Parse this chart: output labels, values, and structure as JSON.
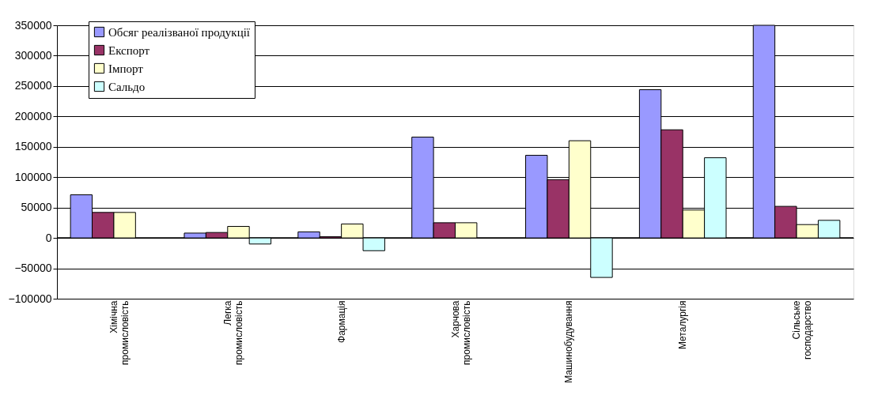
{
  "chart_data": {
    "type": "bar",
    "categories": [
      "Хімічна промисловість",
      "Легка промисловість",
      "Фармація",
      "Харчова промисловість",
      "Машинобудування",
      "Металургія",
      "Сільське господарство"
    ],
    "series": [
      {
        "name": "Обсяг реалізваної продукції",
        "color": "#9999ff",
        "values": [
          71000,
          8000,
          10000,
          166000,
          136000,
          244000,
          350000
        ]
      },
      {
        "name": "Експорт",
        "color": "#993366",
        "values": [
          42000,
          9000,
          2000,
          25000,
          96000,
          178000,
          52000
        ]
      },
      {
        "name": "Імпорт",
        "color": "#ffffcc",
        "values": [
          42000,
          19000,
          23000,
          25000,
          160000,
          46000,
          22000
        ]
      },
      {
        "name": "Сальдо",
        "color": "#ccffff",
        "values": [
          null,
          -10000,
          -21000,
          null,
          -65000,
          132000,
          29000
        ]
      }
    ],
    "ylim": [
      -100000,
      350000
    ],
    "yticks": [
      -100000,
      -50000,
      0,
      50000,
      100000,
      150000,
      200000,
      250000,
      300000,
      350000
    ],
    "grid": "y",
    "legend": "top left"
  }
}
